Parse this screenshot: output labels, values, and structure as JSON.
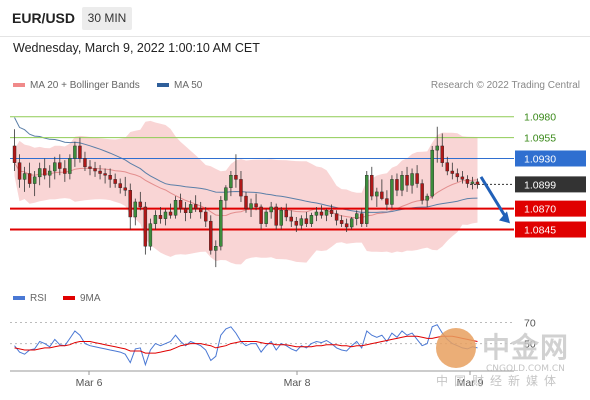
{
  "header": {
    "symbol": "EUR/USD",
    "timeframe": "30 MIN"
  },
  "datetime": "Wednesday, March 9, 2022 1:00:10 AM CET",
  "legend": {
    "ma20_label": "MA 20 + Bollinger Bands",
    "ma50_label": "MA 50",
    "credit": "Research © 2022 Trading Central"
  },
  "rsi_legend": {
    "rsi_label": "RSI",
    "ma9_label": "9MA"
  },
  "watermark": {
    "cn_title": "中金网",
    "domain": "CNGOLD.COM.CN",
    "cn_sub": "中国财经新媒体"
  },
  "colors": {
    "candle_up": "#3c8c3c",
    "candle_down": "#b01818",
    "bollinger_band": "#f6c3c3",
    "ma20": "#e38e8e",
    "ma50": "#5b7fa8",
    "resistance_green": "#8fcc55",
    "pivot_blue": "#2f6fd0",
    "support_red": "#e00000",
    "current_price_bg": "#333333",
    "rsi_line": "#4a78d4",
    "rsi_ma": "#e00000",
    "forecast_arrow": "#2060b8"
  },
  "chart_data": {
    "type": "candlestick",
    "x_ticks": [
      "Mar 6",
      "Mar 8",
      "Mar 9"
    ],
    "current_price": 1.0899,
    "levels": [
      {
        "value": 1.098,
        "label": "1.0980",
        "kind": "resistance"
      },
      {
        "value": 1.0955,
        "label": "1.0955",
        "kind": "resistance"
      },
      {
        "value": 1.093,
        "label": "1.0930",
        "kind": "pivot"
      },
      {
        "value": 1.087,
        "label": "1.0870",
        "kind": "support"
      },
      {
        "value": 1.0845,
        "label": "1.0845",
        "kind": "support"
      }
    ],
    "price_ylim": [
      1.0775,
      1.1
    ],
    "candles": [
      [
        1.0945,
        1.0965,
        1.0915,
        1.0925
      ],
      [
        1.0925,
        1.0935,
        1.0895,
        1.0905
      ],
      [
        1.0905,
        1.092,
        1.089,
        1.0912
      ],
      [
        1.0912,
        1.0925,
        1.0895,
        1.09
      ],
      [
        1.09,
        1.0915,
        1.0885,
        1.0908
      ],
      [
        1.0908,
        1.0925,
        1.0898,
        1.0918
      ],
      [
        1.0918,
        1.093,
        1.0905,
        1.091
      ],
      [
        1.091,
        1.0922,
        1.0895,
        1.0915
      ],
      [
        1.0915,
        1.0932,
        1.0905,
        1.0925
      ],
      [
        1.0925,
        1.0935,
        1.091,
        1.0918
      ],
      [
        1.0918,
        1.0928,
        1.0902,
        1.0912
      ],
      [
        1.0912,
        1.0935,
        1.0905,
        1.093
      ],
      [
        1.093,
        1.095,
        1.092,
        1.0945
      ],
      [
        1.0945,
        1.0955,
        1.0925,
        1.093
      ],
      [
        1.093,
        1.0938,
        1.0915,
        1.092
      ],
      [
        1.092,
        1.0928,
        1.091,
        1.0918
      ],
      [
        1.0918,
        1.0926,
        1.0908,
        1.0915
      ],
      [
        1.0915,
        1.0922,
        1.0905,
        1.0912
      ],
      [
        1.0912,
        1.0918,
        1.09,
        1.091
      ],
      [
        1.091,
        1.0918,
        1.0895,
        1.0905
      ],
      [
        1.0905,
        1.0912,
        1.0895,
        1.09
      ],
      [
        1.09,
        1.0906,
        1.0888,
        1.0895
      ],
      [
        1.0895,
        1.0908,
        1.0885,
        1.0892
      ],
      [
        1.0892,
        1.09,
        1.0845,
        1.086
      ],
      [
        1.086,
        1.0882,
        1.085,
        1.0878
      ],
      [
        1.0878,
        1.089,
        1.0868,
        1.0872
      ],
      [
        1.0872,
        1.0878,
        1.0815,
        1.0825
      ],
      [
        1.0825,
        1.0858,
        1.082,
        1.0852
      ],
      [
        1.0852,
        1.0868,
        1.0845,
        1.0862
      ],
      [
        1.0862,
        1.0872,
        1.0852,
        1.0858
      ],
      [
        1.0858,
        1.087,
        1.085,
        1.0866
      ],
      [
        1.0866,
        1.0876,
        1.0858,
        1.0862
      ],
      [
        1.0862,
        1.0885,
        1.0858,
        1.088
      ],
      [
        1.088,
        1.0888,
        1.0865,
        1.087
      ],
      [
        1.087,
        1.0878,
        1.0855,
        1.0865
      ],
      [
        1.0865,
        1.088,
        1.0858,
        1.0875
      ],
      [
        1.0875,
        1.0886,
        1.0866,
        1.087
      ],
      [
        1.087,
        1.0878,
        1.0858,
        1.0866
      ],
      [
        1.0866,
        1.0872,
        1.0848,
        1.0855
      ],
      [
        1.0855,
        1.0862,
        1.0815,
        1.082
      ],
      [
        1.082,
        1.0832,
        1.08,
        1.0825
      ],
      [
        1.0825,
        1.0885,
        1.082,
        1.088
      ],
      [
        1.088,
        1.0898,
        1.087,
        1.0895
      ],
      [
        1.0895,
        1.0915,
        1.0885,
        1.091
      ],
      [
        1.091,
        1.0935,
        1.0895,
        1.0905
      ],
      [
        1.0905,
        1.0915,
        1.0878,
        1.0885
      ],
      [
        1.0885,
        1.089,
        1.0865,
        1.087
      ],
      [
        1.087,
        1.0882,
        1.086,
        1.0876
      ],
      [
        1.0876,
        1.0888,
        1.0868,
        1.0872
      ],
      [
        1.0872,
        1.0875,
        1.0845,
        1.0852
      ],
      [
        1.0852,
        1.087,
        1.0848,
        1.0866
      ],
      [
        1.0866,
        1.0878,
        1.0858,
        1.0872
      ],
      [
        1.0872,
        1.0876,
        1.0845,
        1.085
      ],
      [
        1.085,
        1.0872,
        1.0845,
        1.0868
      ],
      [
        1.0868,
        1.0876,
        1.0855,
        1.086
      ],
      [
        1.086,
        1.0868,
        1.0848,
        1.0855
      ],
      [
        1.0855,
        1.086,
        1.0842,
        1.085
      ],
      [
        1.085,
        1.0862,
        1.0845,
        1.0858
      ],
      [
        1.0858,
        1.0866,
        1.0848,
        1.0852
      ],
      [
        1.0852,
        1.0865,
        1.0848,
        1.0862
      ],
      [
        1.0862,
        1.0872,
        1.0855,
        1.0866
      ],
      [
        1.0866,
        1.0874,
        1.0858,
        1.0862
      ],
      [
        1.0862,
        1.087,
        1.0855,
        1.0868
      ],
      [
        1.0868,
        1.0875,
        1.086,
        1.0864
      ],
      [
        1.0864,
        1.0868,
        1.085,
        1.0856
      ],
      [
        1.0856,
        1.0862,
        1.0848,
        1.0852
      ],
      [
        1.0852,
        1.0858,
        1.0842,
        1.0848
      ],
      [
        1.0848,
        1.086,
        1.0845,
        1.0858
      ],
      [
        1.0858,
        1.0868,
        1.085,
        1.0864
      ],
      [
        1.0864,
        1.087,
        1.0848,
        1.0852
      ],
      [
        1.0852,
        1.0915,
        1.0848,
        1.091
      ],
      [
        1.091,
        1.092,
        1.088,
        1.0885
      ],
      [
        1.0885,
        1.0895,
        1.0872,
        1.089
      ],
      [
        1.089,
        1.0905,
        1.088,
        1.0882
      ],
      [
        1.0882,
        1.0892,
        1.0868,
        1.0875
      ],
      [
        1.0875,
        1.091,
        1.087,
        1.0905
      ],
      [
        1.0905,
        1.0912,
        1.0885,
        1.0892
      ],
      [
        1.0892,
        1.0915,
        1.0885,
        1.091
      ],
      [
        1.091,
        1.092,
        1.089,
        1.0898
      ],
      [
        1.0898,
        1.0918,
        1.0888,
        1.0912
      ],
      [
        1.0912,
        1.0922,
        1.0895,
        1.09
      ],
      [
        1.09,
        1.0905,
        1.0875,
        1.088
      ],
      [
        1.088,
        1.0888,
        1.0872,
        1.0885
      ],
      [
        1.0885,
        1.0945,
        1.0882,
        1.094
      ],
      [
        1.094,
        1.0968,
        1.0925,
        1.0945
      ],
      [
        1.0945,
        1.096,
        1.092,
        1.0925
      ],
      [
        1.0925,
        1.0932,
        1.091,
        1.0915
      ],
      [
        1.0915,
        1.0925,
        1.0905,
        1.0912
      ],
      [
        1.0912,
        1.0918,
        1.0902,
        1.0908
      ],
      [
        1.0908,
        1.0915,
        1.09,
        1.0905
      ],
      [
        1.0905,
        1.091,
        1.0895,
        1.09
      ],
      [
        1.09,
        1.0908,
        1.0893,
        1.0902
      ],
      [
        1.0902,
        1.0906,
        1.0894,
        1.0899
      ]
    ],
    "forecast": {
      "from": 1.0908,
      "to": 1.085
    },
    "rsi_ylim": [
      25,
      80
    ],
    "rsi_ticks": [
      70,
      50
    ],
    "rsi": [
      48,
      42,
      40,
      44,
      45,
      52,
      50,
      47,
      54,
      49,
      48,
      55,
      62,
      58,
      50,
      48,
      47,
      46,
      45,
      44,
      43,
      42,
      40,
      32,
      45,
      46,
      30,
      44,
      50,
      48,
      50,
      52,
      58,
      52,
      48,
      52,
      50,
      48,
      44,
      34,
      38,
      58,
      64,
      66,
      60,
      52,
      48,
      50,
      50,
      42,
      48,
      52,
      44,
      50,
      48,
      45,
      43,
      48,
      46,
      50,
      52,
      51,
      53,
      50,
      46,
      44,
      43,
      48,
      52,
      46,
      62,
      58,
      56,
      58,
      52,
      60,
      56,
      62,
      58,
      60,
      54,
      48,
      50,
      66,
      68,
      60,
      54,
      50,
      48,
      46,
      45,
      47,
      46
    ],
    "rsi_ma": [
      46,
      45,
      44,
      44,
      44,
      45,
      46,
      46,
      47,
      48,
      48,
      49,
      51,
      52,
      52,
      52,
      51,
      50,
      49,
      48,
      47,
      46,
      45,
      43,
      43,
      43,
      41,
      41,
      41,
      42,
      43,
      44,
      46,
      48,
      49,
      50,
      50,
      50,
      49,
      48,
      46,
      47,
      48,
      50,
      51,
      52,
      52,
      52,
      52,
      51,
      50,
      50,
      49,
      49,
      49,
      48,
      47,
      47,
      47,
      47,
      48,
      48,
      49,
      49,
      49,
      48,
      48,
      47,
      48,
      48,
      49,
      50,
      51,
      52,
      53,
      54,
      55,
      56,
      57,
      57,
      57,
      56,
      55,
      55,
      56,
      57,
      57,
      57,
      56,
      55,
      54,
      53,
      52
    ]
  }
}
